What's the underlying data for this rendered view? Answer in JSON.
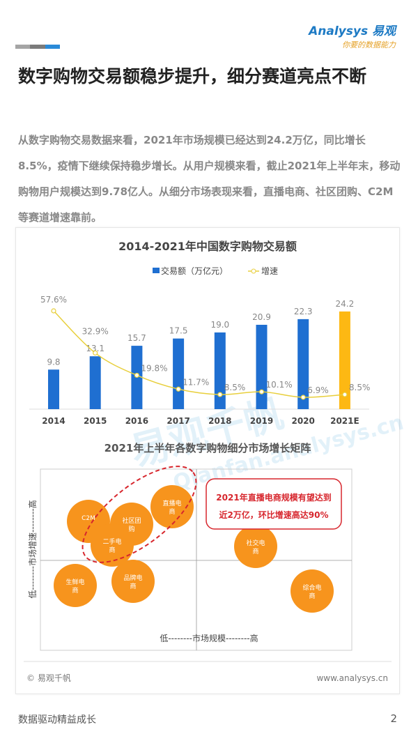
{
  "header": {
    "logo_text": "Analysys 易观",
    "logo_slogan": "你要的数据能力",
    "bar_colors": [
      "#a5a5a5",
      "#7b7b7b",
      "#2a8ad8"
    ]
  },
  "title": "数字购物交易额稳步提升，细分赛道亮点不断",
  "intro": "从数字购物交易数据来看，2021年市场规模已经达到24.2万亿，同比增长8.5%，疫情下继续保持稳步增长。从用户规模来看，截止2021年上半年末，移动购物用户规模达到9.78亿人。从细分市场表现来看，直播电商、社区团购、C2M等赛道增速靠前。",
  "chart_data": [
    {
      "type": "bar",
      "title": "2014-2021年中国数字购物交易额",
      "categories": [
        "2014",
        "2015",
        "2016",
        "2017",
        "2018",
        "2019",
        "2020",
        "2021E"
      ],
      "series": [
        {
          "name": "交易额（万亿元）",
          "values": [
            9.8,
            13.1,
            15.7,
            17.5,
            19.0,
            20.9,
            22.3,
            24.2
          ],
          "color": "#1f6fd1",
          "highlight_color": "#fdb813",
          "labels": [
            "9.8",
            "13.1",
            "15.7",
            "17.5",
            "19.0",
            "20.9",
            "22.3",
            "24.2"
          ]
        },
        {
          "name": "增速",
          "type": "line",
          "values": [
            57.6,
            32.9,
            19.8,
            11.7,
            8.5,
            10.1,
            6.9,
            8.5
          ],
          "color": "#e8cf3c",
          "labels": [
            "57.6%",
            "32.9%",
            "19.8%",
            "11.7%",
            "8.5%",
            "10.1%",
            "6.9%",
            "8.5%"
          ]
        }
      ],
      "legend": "top",
      "grid": false
    },
    {
      "type": "scatter",
      "title": "2021年上半年各数字购物细分市场增长矩阵",
      "xlabel": "低--------市场规模--------高",
      "ylabel": "低--------市场增速--------高",
      "points": [
        {
          "label": "C2M"
        },
        {
          "label": "社区团购"
        },
        {
          "label": "二手电商"
        },
        {
          "label": "直播电商"
        },
        {
          "label": "社交电商"
        },
        {
          "label": "生鲜电商"
        },
        {
          "label": "品牌电商"
        },
        {
          "label": "综合电商"
        }
      ],
      "bubble_color": "#f7941d",
      "callout": [
        "2021年直播电商规模有望达到",
        "近2万亿，环比增速高达90%"
      ],
      "callout_color": "#d7262d"
    }
  ],
  "watermark": "易观千帆 Qianfan.analysys.cn",
  "source": "© 易观千帆",
  "website": "www.analysys.cn",
  "footer": {
    "slogan": "数据驱动精益成长",
    "page": "2"
  }
}
